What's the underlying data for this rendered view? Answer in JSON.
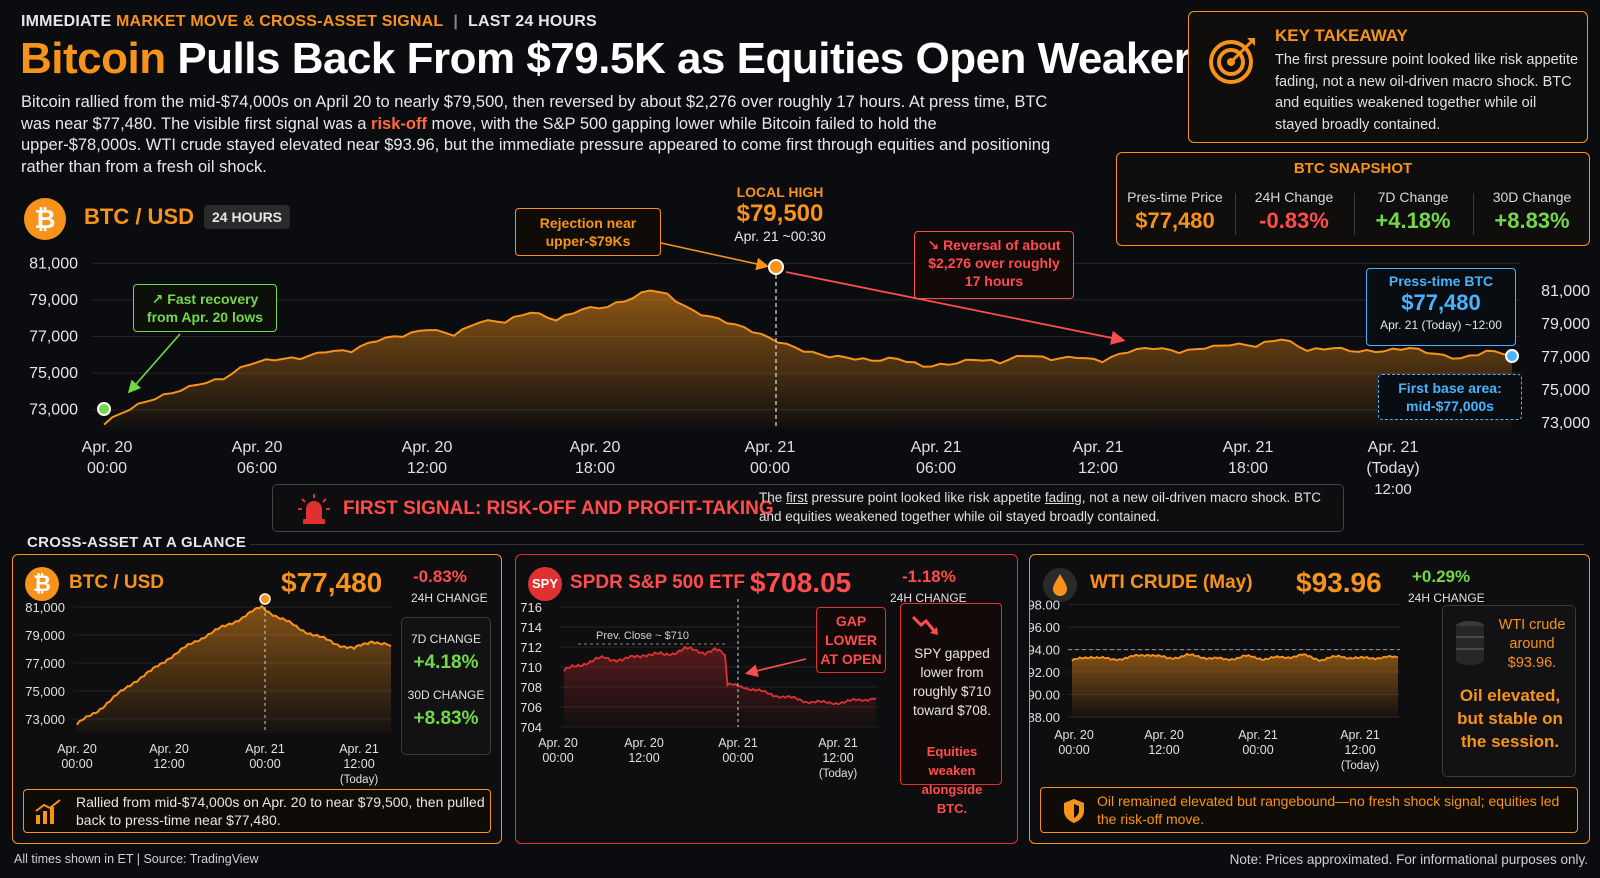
{
  "header": {
    "kicker_part1": "IMMEDIATE ",
    "kicker_highlight": "MARKET MOVE & CROSS-ASSET SIGNAL",
    "kicker_separator": "|",
    "kicker_part2": "LAST 24 HOURS",
    "headline_highlight": "Bitcoin",
    "headline_rest": " Pulls Back From $79.5K as Equities Open Weaker",
    "intro_before": "Bitcoin rallied from the mid-$74,000s on April 20 to nearly $79,500, then reversed by about $2,276 over roughly 17 hours. At press time, BTC was near $77,480. The visible first signal was a ",
    "intro_highlight": "risk-off",
    "intro_after": " move, with the S&P 500 gapping lower while Bitcoin failed to hold the upper-$78,000s. WTI crude stayed elevated near $93.96, but the immediate pressure appeared to come first through equities and positioning rather than from a fresh oil shock."
  },
  "takeaway": {
    "title": "KEY TAKEAWAY",
    "text": "The first pressure point looked like risk appetite fading, not a new oil-driven macro shock. BTC and equities weakened together while oil stayed broadly contained.",
    "icon": "target-icon"
  },
  "snapshot": {
    "title": "BTC SNAPSHOT",
    "items": [
      {
        "label": "Pres-time Price",
        "value": "$77,480",
        "color": "#f7931a"
      },
      {
        "label": "24H Change",
        "value": "-0.83%",
        "color": "#ff4d4d"
      },
      {
        "label": "7D Change",
        "value": "+4.18%",
        "color": "#72d94a"
      },
      {
        "label": "30D Change",
        "value": "+8.83%",
        "color": "#72d94a"
      }
    ]
  },
  "main": {
    "badge": "₿",
    "pair": "BTC / USD",
    "range": "24 HOURS",
    "local_high_label": "LOCAL HIGH",
    "local_high_value": "$79,500",
    "local_high_time": "Apr. 21 ~00:30",
    "callouts": {
      "recovery": [
        "Fast recovery",
        "from Apr. 20 lows"
      ],
      "reject": [
        "Rejection near",
        "upper-$79Ks"
      ],
      "reversal": [
        "Reversal of about",
        "$2,276 over roughly",
        "17 hours"
      ],
      "presstime_label": "Press-time BTC",
      "presstime_value": "$77,480",
      "presstime_time": "Apr. 21 (Today) ~12:00",
      "base": [
        "First base area:",
        "mid-$77,000s"
      ]
    }
  },
  "chart_data": [
    {
      "type": "area",
      "title": "BTC / USD",
      "x": [
        "Apr. 20 00:00",
        "Apr. 20 06:00",
        "Apr. 20 12:00",
        "Apr. 20 18:00",
        "Apr. 21 00:00",
        "Apr. 21 06:00",
        "Apr. 21 12:00",
        "Apr. 21 18:00",
        "Apr. 21 (Today) 12:00"
      ],
      "x_ticks": [
        [
          "Apr. 20",
          "00:00"
        ],
        [
          "Apr. 20",
          "06:00"
        ],
        [
          "Apr. 20",
          "12:00"
        ],
        [
          "Apr. 20",
          "18:00"
        ],
        [
          "Apr. 21",
          "00:00"
        ],
        [
          "Apr. 21",
          "06:00"
        ],
        [
          "Apr. 21",
          "12:00"
        ],
        [
          "Apr. 21",
          "18:00"
        ],
        [
          "Apr. 21",
          "(Today)",
          "12:00"
        ]
      ],
      "y_ticks_left": [
        "81,000",
        "79,000",
        "77,000",
        "75,000",
        "73,000"
      ],
      "y_ticks_right": [
        "81,000",
        "79,000",
        "77,000",
        "75,000",
        "73,000"
      ],
      "ylim": [
        72000,
        81000
      ],
      "points": [
        [
          0,
          72200
        ],
        [
          2,
          72700
        ],
        [
          5,
          73400
        ],
        [
          8,
          74000
        ],
        [
          11,
          74500
        ],
        [
          14,
          74700
        ],
        [
          17,
          75400
        ],
        [
          20,
          75700
        ],
        [
          23,
          75900
        ],
        [
          26,
          76300
        ],
        [
          29,
          76200
        ],
        [
          32,
          76700
        ],
        [
          35,
          77000
        ],
        [
          38,
          77500
        ],
        [
          41,
          77200
        ],
        [
          44,
          77800
        ],
        [
          47,
          77700
        ],
        [
          50,
          78300
        ],
        [
          53,
          78000
        ],
        [
          56,
          78600
        ],
        [
          59,
          78600
        ],
        [
          62,
          79000
        ],
        [
          64,
          79500
        ],
        [
          66,
          79300
        ],
        [
          69,
          78500
        ],
        [
          72,
          78000
        ],
        [
          75,
          77400
        ],
        [
          78,
          76800
        ],
        [
          81,
          76400
        ],
        [
          84,
          76100
        ],
        [
          87,
          75900
        ],
        [
          90,
          75600
        ],
        [
          93,
          75700
        ],
        [
          96,
          75400
        ],
        [
          99,
          75600
        ],
        [
          102,
          75800
        ],
        [
          105,
          75500
        ],
        [
          108,
          75900
        ],
        [
          111,
          75800
        ],
        [
          114,
          76000
        ],
        [
          117,
          75700
        ],
        [
          120,
          76100
        ],
        [
          123,
          76300
        ],
        [
          126,
          76200
        ],
        [
          129,
          76500
        ],
        [
          132,
          76600
        ],
        [
          135,
          76400
        ],
        [
          138,
          76800
        ],
        [
          141,
          76300
        ],
        [
          144,
          76500
        ],
        [
          147,
          76200
        ],
        [
          150,
          76100
        ],
        [
          153,
          76300
        ],
        [
          156,
          76100
        ],
        [
          159,
          75900
        ],
        [
          162,
          76200
        ],
        [
          165,
          75950
        ]
      ],
      "grid": true
    },
    {
      "type": "area",
      "title": "BTC / USD",
      "x_ticks": [
        [
          "Apr. 20",
          "00:00"
        ],
        [
          "Apr. 20",
          "12:00"
        ],
        [
          "Apr. 21",
          "00:00"
        ],
        [
          "Apr. 21",
          "12:00",
          "(Today)"
        ]
      ],
      "y_ticks": [
        "81,000",
        "79,000",
        "77,000",
        "75,000",
        "73,000"
      ],
      "ylim": [
        72000,
        82000
      ],
      "points": [
        [
          0,
          72600
        ],
        [
          4,
          73500
        ],
        [
          8,
          74500
        ],
        [
          12,
          75600
        ],
        [
          16,
          76400
        ],
        [
          20,
          77400
        ],
        [
          24,
          78200
        ],
        [
          28,
          79000
        ],
        [
          32,
          79600
        ],
        [
          36,
          80300
        ],
        [
          40,
          81000
        ],
        [
          44,
          80200
        ],
        [
          48,
          79500
        ],
        [
          52,
          78900
        ],
        [
          56,
          78400
        ],
        [
          60,
          78000
        ],
        [
          64,
          78600
        ],
        [
          68,
          78200
        ]
      ]
    },
    {
      "type": "line",
      "title": "SPDR S&P 500 ETF",
      "x_ticks": [
        [
          "Apr. 20",
          "00:00"
        ],
        [
          "Apr. 20",
          "12:00"
        ],
        [
          "Apr. 21",
          "00:00"
        ],
        [
          "Apr. 21",
          "12:00",
          "(Today)"
        ]
      ],
      "y_ticks": [
        "716",
        "714",
        "712",
        "710",
        "708",
        "706",
        "704"
      ],
      "ylim": [
        704,
        716
      ],
      "prev_close": 710,
      "prev_close_label": "Prev. Close ~ $710",
      "points": [
        [
          0,
          709.6
        ],
        [
          4,
          710.4
        ],
        [
          8,
          710.9
        ],
        [
          12,
          710.7
        ],
        [
          16,
          711.3
        ],
        [
          20,
          711.2
        ],
        [
          24,
          711.8
        ],
        [
          28,
          711.5
        ],
        [
          30,
          711.7
        ],
        [
          32,
          711.2
        ],
        [
          32.5,
          708.2
        ],
        [
          36,
          708.0
        ],
        [
          40,
          707.4
        ],
        [
          44,
          707.0
        ],
        [
          48,
          706.6
        ],
        [
          52,
          706.4
        ],
        [
          56,
          706.5
        ],
        [
          60,
          706.8
        ],
        [
          62,
          706.9
        ]
      ]
    },
    {
      "type": "area",
      "title": "WTI CRUDE (May)",
      "x_ticks": [
        [
          "Apr. 20",
          "00:00"
        ],
        [
          "Apr. 20",
          "12:00"
        ],
        [
          "Apr. 21",
          "00:00"
        ],
        [
          "Apr. 21",
          "12:00",
          "(Today)"
        ]
      ],
      "y_ticks": [
        "98.00",
        "96.00",
        "94.00",
        "92.00",
        "90.00",
        "88.00"
      ],
      "ylim": [
        88,
        98
      ],
      "reference": 94,
      "points": [
        [
          0,
          93.0
        ],
        [
          4,
          93.4
        ],
        [
          8,
          93.1
        ],
        [
          12,
          93.3
        ],
        [
          16,
          93.6
        ],
        [
          20,
          93.2
        ],
        [
          24,
          93.5
        ],
        [
          28,
          93.3
        ],
        [
          32,
          93.1
        ],
        [
          36,
          93.4
        ],
        [
          40,
          93.2
        ],
        [
          44,
          93.3
        ],
        [
          48,
          93.5
        ],
        [
          52,
          93.1
        ],
        [
          56,
          93.4
        ],
        [
          60,
          93.2
        ],
        [
          64,
          93.3
        ],
        [
          68,
          93.3
        ]
      ]
    }
  ],
  "signal": {
    "title": "FIRST SIGNAL: RISK-OFF AND PROFIT-TAKING",
    "text_a": "The ",
    "text_first": "first",
    "text_b": " pressure point looked like risk appetite ",
    "text_fading": "fading",
    "text_c": ", not a new oil-driven macro shock. BTC and equities weakened together while oil stayed broadly contained.",
    "icon": "siren-icon"
  },
  "cross_label": "CROSS-ASSET AT A GLANCE",
  "panels": {
    "btc": {
      "badge": "₿",
      "title": "BTC / USD",
      "price": "$77,480",
      "change": "-0.83%",
      "change_label": "24H CHANGE",
      "side": [
        {
          "label": "7D CHANGE",
          "value": "+4.18%"
        },
        {
          "label": "30D CHANGE",
          "value": "+8.83%"
        }
      ],
      "footer": "Rallied from mid-$74,000s on Apr. 20 to near $79,500, then pulled back to press-time near $77,480."
    },
    "spy": {
      "badge": "SPY",
      "title": "SPDR S&P 500 ETF",
      "price": "$708.05",
      "change": "-1.18%",
      "change_label": "24H CHANGE",
      "gap": [
        "GAP",
        "LOWER",
        "AT OPEN"
      ],
      "side_text": "SPY gapped lower from roughly $710 toward $708.",
      "side_warn": "Equities weaken alongside BTC."
    },
    "oil": {
      "badge": "drop",
      "title": "WTI CRUDE (May)",
      "price": "$93.96",
      "change": "+0.29%",
      "change_label": "24H CHANGE",
      "side_text": "WTI crude around $93.96.",
      "side_strong": "Oil elevated, but stable on the session.",
      "footer": "Oil remained elevated but rangebound—no fresh shock signal; equities led the risk-off move."
    }
  },
  "footer": {
    "left": "All times shown in ET  |  Source: TradingView",
    "right": "Note: Prices approximated. For informational purposes only."
  },
  "colors": {
    "accent": "#f7931a",
    "down": "#ff4d4d",
    "up": "#72d94a",
    "info": "#49b3ff"
  }
}
